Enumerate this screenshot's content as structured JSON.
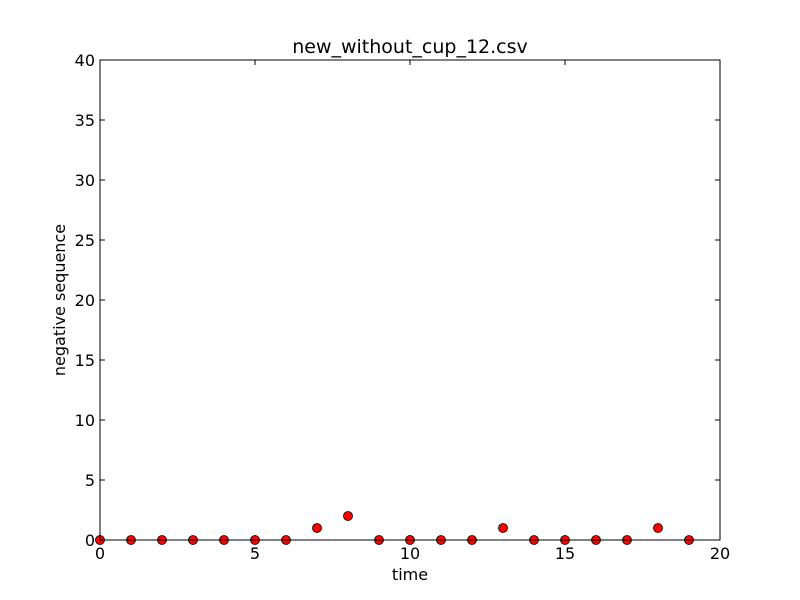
{
  "chart_data": {
    "type": "scatter",
    "title": "new_without_cup_12.csv",
    "xlabel": "time",
    "ylabel": "negative sequence",
    "xlim": [
      0,
      20
    ],
    "ylim": [
      0,
      40
    ],
    "xticks": [
      "0",
      "5",
      "10",
      "15",
      "20"
    ],
    "yticks": [
      "0",
      "5",
      "10",
      "15",
      "20",
      "25",
      "30",
      "35",
      "40"
    ],
    "grid": false,
    "marker_color": "#ff0000",
    "series": [
      {
        "x": [
          0,
          1,
          2,
          3,
          4,
          5,
          6,
          7,
          8,
          9,
          10,
          11,
          12,
          13,
          14,
          15,
          16,
          17,
          18,
          19
        ],
        "y": [
          0,
          0,
          0,
          0,
          0,
          0,
          0,
          1,
          2,
          0,
          0,
          0,
          0,
          1,
          0,
          0,
          0,
          0,
          1,
          0
        ]
      }
    ]
  }
}
